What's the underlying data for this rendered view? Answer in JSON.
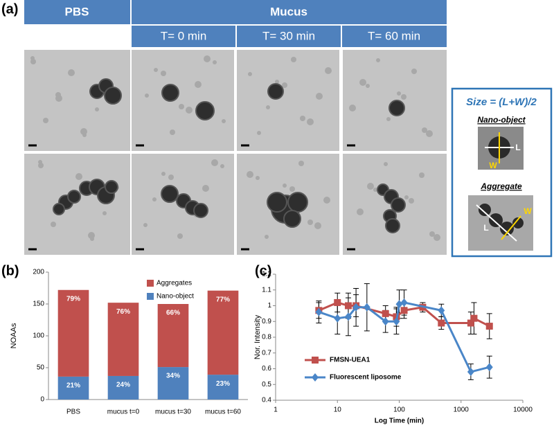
{
  "panel_labels": {
    "a": "(a)",
    "b": "(b)",
    "c": "(c)"
  },
  "micrograph_header": {
    "pbs": "PBS",
    "mucus": "Mucus",
    "times": [
      "T= 0 min",
      "T= 30 min",
      "T= 60 min"
    ]
  },
  "size_box": {
    "formula": "Size = (L+W)/2",
    "nano_object": "Nano-object",
    "aggregate": "Aggregate",
    "length": "L",
    "width": "W"
  },
  "chart_data": [
    {
      "type": "bar",
      "stacked": true,
      "ylabel": "NOAAs",
      "categories": [
        "PBS",
        "mucus t=0",
        "mucus t=30",
        "mucus t=60"
      ],
      "series": [
        {
          "name": "Nano-object",
          "color": "#4f81bd",
          "values": [
            36,
            37,
            51,
            39
          ],
          "percent_labels": [
            "21%",
            "24%",
            "34%",
            "23%"
          ]
        },
        {
          "name": "Aggregates",
          "color": "#c0504d",
          "values": [
            136,
            115,
            99,
            132
          ],
          "percent_labels": [
            "79%",
            "76%",
            "66%",
            "77%"
          ]
        }
      ],
      "ylim": [
        0,
        200
      ],
      "yticks": [
        0,
        50,
        100,
        150,
        200
      ],
      "legend": "upper right"
    },
    {
      "type": "line",
      "xscale": "log",
      "xlabel": "Log Time (min)",
      "ylabel": "Nor. Intensity",
      "xlim": [
        1,
        10000
      ],
      "xticks": [
        1,
        10,
        100,
        1000,
        10000
      ],
      "ylim": [
        0.4,
        1.2
      ],
      "yticks": [
        0.4,
        0.5,
        0.6,
        0.7,
        0.8,
        0.9,
        1,
        1.1,
        1.2
      ],
      "legend": "lower left",
      "series": [
        {
          "name": "FMSN-UEA1",
          "color": "#c0504d",
          "marker": "square",
          "x": [
            5,
            10,
            15,
            20,
            60,
            90,
            120,
            240,
            480,
            1440,
            1620,
            2880
          ],
          "values": [
            0.97,
            1.02,
            1,
            1,
            0.95,
            0.93,
            0.97,
            0.99,
            0.89,
            0.89,
            0.92,
            0.87
          ],
          "errors": [
            0.05,
            0.06,
            0.08,
            0.07,
            0.05,
            0.06,
            0.05,
            0.03,
            0.04,
            0.07,
            0.1,
            0.08
          ]
        },
        {
          "name": "Fluorescent liposome",
          "color": "#4a86c8",
          "marker": "diamond",
          "x": [
            5,
            10,
            15,
            20,
            30,
            60,
            90,
            100,
            120,
            480,
            1440,
            2880
          ],
          "values": [
            0.96,
            0.92,
            0.93,
            0.99,
            0.99,
            0.9,
            0.9,
            1.01,
            1.02,
            0.97,
            0.58,
            0.61
          ],
          "errors": [
            0.07,
            0.1,
            0.12,
            0.12,
            0.15,
            0.07,
            0.08,
            0.09,
            0.08,
            0.04,
            0.05,
            0.07
          ]
        }
      ]
    }
  ]
}
